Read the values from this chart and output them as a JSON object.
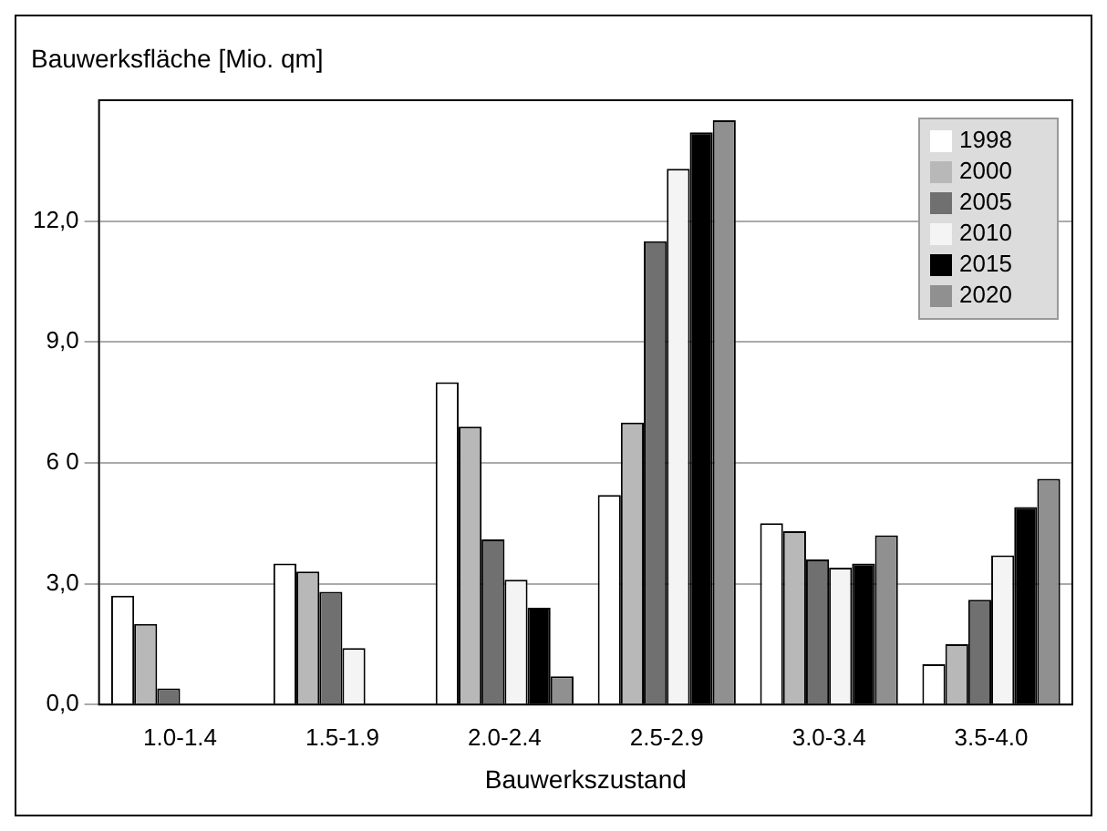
{
  "chart_data": {
    "type": "bar",
    "ylabel": "Bauwerksfläche [Mio. qm]",
    "xlabel": "Bauwerkszustand",
    "categories": [
      "1.0-1.4",
      "1.5-1.9",
      "2.0-2.4",
      "2.5-2.9",
      "3.0-3.4",
      "3.5-4.0"
    ],
    "series": [
      {
        "name": "1998",
        "color": "#ffffff",
        "values": [
          2.7,
          3.5,
          8.0,
          5.2,
          4.5,
          1.0
        ]
      },
      {
        "name": "2000",
        "color": "#b8b8b8",
        "values": [
          2.0,
          3.3,
          6.9,
          7.0,
          4.3,
          1.5
        ]
      },
      {
        "name": "2005",
        "color": "#707070",
        "values": [
          0.4,
          2.8,
          4.1,
          11.5,
          3.6,
          2.6
        ]
      },
      {
        "name": "2010",
        "color": "#f4f4f4",
        "values": [
          0,
          1.4,
          3.1,
          13.3,
          3.4,
          3.7
        ]
      },
      {
        "name": "2015",
        "color": "#000000",
        "values": [
          0,
          0,
          2.4,
          14.2,
          3.5,
          4.9
        ]
      },
      {
        "name": "2020",
        "color": "#909090",
        "values": [
          0,
          0,
          0.7,
          14.5,
          4.2,
          5.6
        ]
      }
    ],
    "ylim": [
      0,
      15
    ],
    "yticks": [
      {
        "value": 0,
        "label": "0,0"
      },
      {
        "value": 3,
        "label": "3,0"
      },
      {
        "value": 6,
        "label": "6 0"
      },
      {
        "value": 9,
        "label": "9,0"
      },
      {
        "value": 12,
        "label": "12,0"
      }
    ],
    "grid": "y",
    "legend": "top right"
  }
}
